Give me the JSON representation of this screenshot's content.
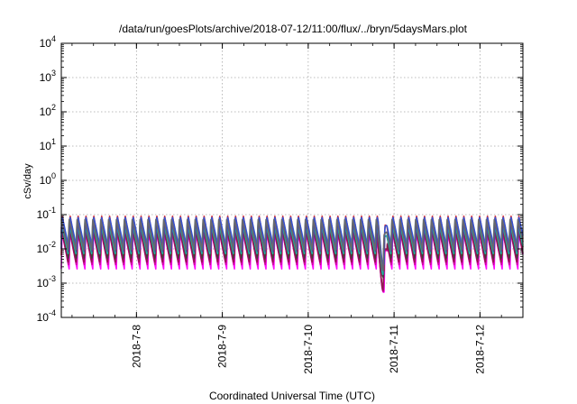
{
  "chart_data": {
    "type": "line",
    "title": "/data/run/goesPlots/archive/2018-07-12/11:00/flux/../bryn/5daysMars.plot",
    "xlabel": "Coordinated Universal Time (UTC)",
    "ylabel": "cSv/day",
    "yscale": "log",
    "ylim": [
      0.0001,
      10000
    ],
    "xlim": [
      "2018-07-07 03:00",
      "2018-07-12 12:00"
    ],
    "grid": true,
    "y_ticks": [
      {
        "base": "10",
        "exp": "-4",
        "value": 0.0001
      },
      {
        "base": "10",
        "exp": "-3",
        "value": 0.001
      },
      {
        "base": "10",
        "exp": "-2",
        "value": 0.01
      },
      {
        "base": "10",
        "exp": "-1",
        "value": 0.1
      },
      {
        "base": "10",
        "exp": "0",
        "value": 1
      },
      {
        "base": "10",
        "exp": "1",
        "value": 10
      },
      {
        "base": "10",
        "exp": "2",
        "value": 100
      },
      {
        "base": "10",
        "exp": "3",
        "value": 1000
      },
      {
        "base": "10",
        "exp": "4",
        "value": 10000
      }
    ],
    "x_ticks": [
      {
        "label": "2018-7-8",
        "value": "2018-07-08 00:00"
      },
      {
        "label": "2018-7-9",
        "value": "2018-07-09 00:00"
      },
      {
        "label": "2018-7-10",
        "value": "2018-07-10 00:00"
      },
      {
        "label": "2018-7-11",
        "value": "2018-07-11 00:00"
      },
      {
        "label": "2018-7-12",
        "value": "2018-07-12 00:00"
      }
    ],
    "pattern": {
      "period_hours": 2.2,
      "dip": {
        "start": "2018-07-10 19:30",
        "end": "2018-07-10 22:00",
        "factor": 0.15
      }
    },
    "series": [
      {
        "color": "#ff00ff",
        "peak": 0.03,
        "trough": 0.0026
      },
      {
        "color": "#cc0099",
        "peak": 0.035,
        "trough": 0.0032
      },
      {
        "color": "#8b1a4a",
        "peak": 0.045,
        "trough": 0.004
      },
      {
        "color": "#e52020",
        "peak": 0.1,
        "trough": 0.0065
      },
      {
        "color": "#3f3f3f",
        "peak": 0.055,
        "trough": 0.005
      },
      {
        "color": "#1cb8a8",
        "peak": 0.06,
        "trough": 0.007
      },
      {
        "color": "#2a55d8",
        "peak": 0.09,
        "trough": 0.01
      },
      {
        "color": "#4a3fa0",
        "peak": 0.065,
        "trough": 0.008
      },
      {
        "color": "#6a6a6a",
        "peak": 0.075,
        "trough": 0.009
      }
    ]
  }
}
